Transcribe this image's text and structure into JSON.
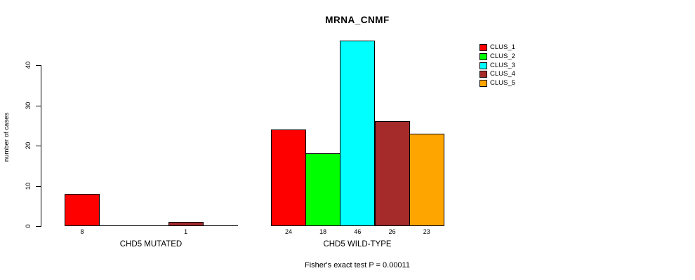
{
  "chart_data": {
    "type": "bar",
    "title": "MRNA_CNMF",
    "ylabel": "number of cases",
    "xlabel": "",
    "ylim": [
      0,
      46
    ],
    "yticks": [
      0,
      10,
      20,
      30,
      40
    ],
    "grid": false,
    "legend_position": "top-right",
    "categories": [
      "CLUS_1",
      "CLUS_2",
      "CLUS_3",
      "CLUS_4",
      "CLUS_5"
    ],
    "legend": [
      {
        "label": "CLUS_1",
        "color": "#FF0000"
      },
      {
        "label": "CLUS_2",
        "color": "#00FF00"
      },
      {
        "label": "CLUS_3",
        "color": "#00FFFF"
      },
      {
        "label": "CLUS_4",
        "color": "#A52A2A"
      },
      {
        "label": "CLUS_5",
        "color": "#FFA500"
      }
    ],
    "groups": [
      {
        "label": "CHD5 MUTATED",
        "values": [
          8,
          0,
          0,
          1,
          0
        ],
        "bar_labels": [
          "8",
          null,
          null,
          "1",
          null
        ]
      },
      {
        "label": "CHD5 WILD-TYPE",
        "values": [
          24,
          18,
          46,
          26,
          23
        ],
        "bar_labels": [
          "24",
          "18",
          "46",
          "26",
          "23"
        ]
      }
    ],
    "annotation": "Fisher's exact test P = 0.00011",
    "colors": {
      "CLUS_1": "#FF0000",
      "CLUS_2": "#00FF00",
      "CLUS_3": "#00FFFF",
      "CLUS_4": "#A52A2A",
      "CLUS_5": "#FFA500",
      "axis": "#000000",
      "background": "#FFFFFF"
    }
  }
}
